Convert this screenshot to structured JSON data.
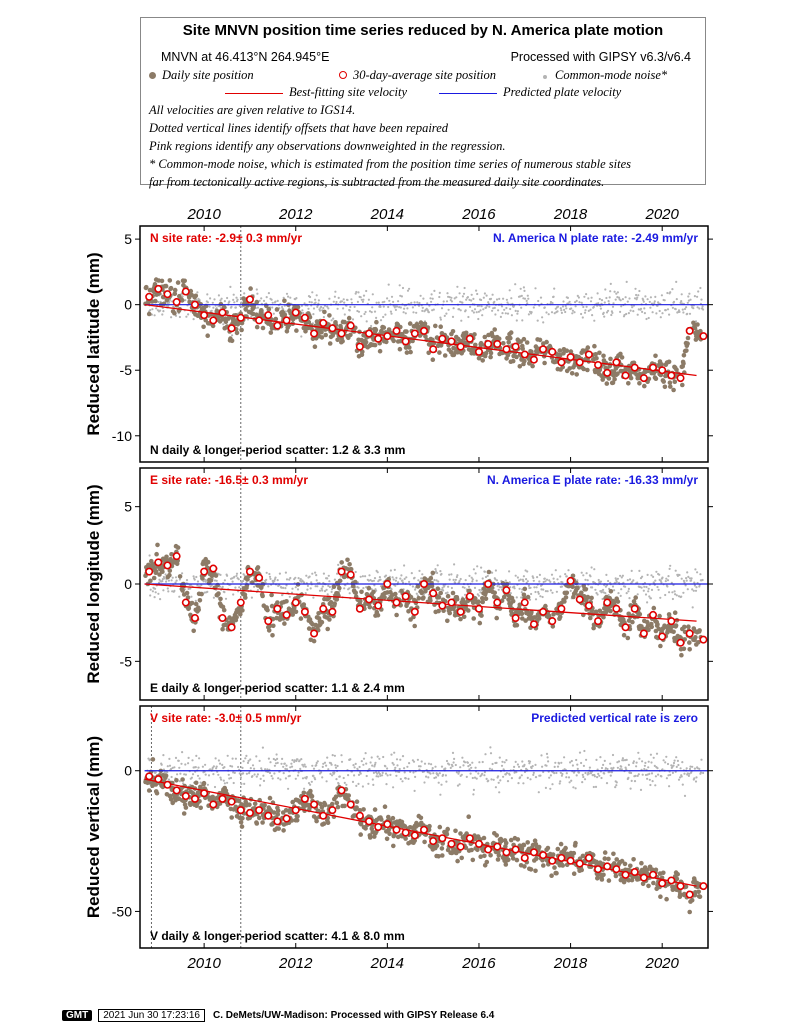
{
  "header": {
    "title": "Site MNVN position time series reduced by N. America plate motion",
    "site_info": "MNVN at 46.413°N 264.945°E",
    "processed": "Processed with GIPSY v6.3/v6.4",
    "legend": {
      "daily": "Daily site position",
      "avg": "30-day-average site position",
      "cmn": "Common-mode noise*",
      "best_fit": "Best-fitting site velocity",
      "predicted": "Predicted plate velocity"
    },
    "notes": [
      "All velocities are given relative to IGS14.",
      "Dotted vertical lines identify offsets that have been repaired",
      "Pink regions identify any observations downweighted in the regression.",
      "* Common-mode noise, which is estimated from the position time series of numerous stable sites",
      "far from tectonically active regions, is subtracted from the measured daily site coordinates."
    ]
  },
  "colors": {
    "daily": "#8c7b67",
    "cmn": "#b4b4b4",
    "fit": "#e00000",
    "plate": "#1a1ae0",
    "avg_ring": "#e00000"
  },
  "chart_data": [
    {
      "type": "scatter",
      "component": "north",
      "ylabel": "Reduced latitude (mm)",
      "ylim": [
        -12,
        6
      ],
      "yticks": [
        5,
        0,
        -5,
        -10
      ],
      "xlim": [
        2008.6,
        2021.0
      ],
      "xticks": [
        2010,
        2012,
        2014,
        2016,
        2018,
        2020
      ],
      "site_rate_label": "N site rate:  -2.9± 0.3 mm/yr",
      "plate_rate_label": "N. America N plate rate: -2.49 mm/yr",
      "scatter_label": "N daily & longer-period scatter:   1.2 &   3.3 mm",
      "fit_line": {
        "x": [
          2008.7,
          2020.75
        ],
        "y": [
          0.0,
          -5.4
        ]
      },
      "plate_line": {
        "x": [
          2008.7,
          2021.0
        ],
        "y": [
          0.0,
          0.0
        ]
      },
      "offset_lines_x": [
        2010.8
      ],
      "avg_series": {
        "x": [
          2008.8,
          2009.0,
          2009.2,
          2009.4,
          2009.6,
          2009.8,
          2010.0,
          2010.2,
          2010.4,
          2010.6,
          2010.8,
          2011.0,
          2011.2,
          2011.4,
          2011.6,
          2011.8,
          2012.0,
          2012.2,
          2012.4,
          2012.6,
          2012.8,
          2013.0,
          2013.2,
          2013.4,
          2013.6,
          2013.8,
          2014.0,
          2014.2,
          2014.4,
          2014.6,
          2014.8,
          2015.0,
          2015.2,
          2015.4,
          2015.6,
          2015.8,
          2016.0,
          2016.2,
          2016.4,
          2016.6,
          2016.8,
          2017.0,
          2017.2,
          2017.4,
          2017.6,
          2017.8,
          2018.0,
          2018.2,
          2018.4,
          2018.6,
          2018.8,
          2019.0,
          2019.2,
          2019.4,
          2019.6,
          2019.8,
          2020.0,
          2020.2,
          2020.4,
          2020.6,
          2020.9
        ],
        "y": [
          0.6,
          1.2,
          0.8,
          0.2,
          1.0,
          0.0,
          -0.8,
          -1.2,
          -0.6,
          -1.8,
          -1.0,
          0.4,
          -1.2,
          -0.8,
          -1.6,
          -1.2,
          -0.6,
          -1.0,
          -2.2,
          -1.4,
          -1.8,
          -2.2,
          -1.6,
          -3.2,
          -2.2,
          -2.6,
          -2.4,
          -2.0,
          -2.8,
          -2.2,
          -2.0,
          -3.4,
          -2.6,
          -2.8,
          -3.2,
          -2.6,
          -3.6,
          -3.0,
          -3.0,
          -3.4,
          -3.2,
          -3.8,
          -4.2,
          -3.4,
          -3.6,
          -4.4,
          -4.0,
          -4.4,
          -3.8,
          -4.6,
          -5.2,
          -4.4,
          -5.4,
          -4.8,
          -5.6,
          -4.8,
          -5.0,
          -5.4,
          -5.6,
          -2.0,
          -2.4
        ]
      }
    },
    {
      "type": "scatter",
      "component": "east",
      "ylabel": "Reduced longitude (mm)",
      "ylim": [
        -7.5,
        7.5
      ],
      "yticks": [
        5,
        0,
        -5
      ],
      "xlim": [
        2008.6,
        2021.0
      ],
      "xticks": [
        2010,
        2012,
        2014,
        2016,
        2018,
        2020
      ],
      "site_rate_label": "E site rate: -16.5± 0.3 mm/yr",
      "plate_rate_label": "N. America E plate rate: -16.33 mm/yr",
      "scatter_label": "E daily & longer-period scatter:   1.1 &   2.4 mm",
      "fit_line": {
        "x": [
          2008.7,
          2020.75
        ],
        "y": [
          0.0,
          -2.4
        ]
      },
      "plate_line": {
        "x": [
          2008.7,
          2021.0
        ],
        "y": [
          0.0,
          0.0
        ]
      },
      "offset_lines_x": [
        2010.8
      ],
      "avg_series": {
        "x": [
          2008.8,
          2009.0,
          2009.2,
          2009.4,
          2009.6,
          2009.8,
          2010.0,
          2010.2,
          2010.4,
          2010.6,
          2010.8,
          2011.0,
          2011.2,
          2011.4,
          2011.6,
          2011.8,
          2012.0,
          2012.2,
          2012.4,
          2012.6,
          2012.8,
          2013.0,
          2013.2,
          2013.4,
          2013.6,
          2013.8,
          2014.0,
          2014.2,
          2014.4,
          2014.6,
          2014.8,
          2015.0,
          2015.2,
          2015.4,
          2015.6,
          2015.8,
          2016.0,
          2016.2,
          2016.4,
          2016.6,
          2016.8,
          2017.0,
          2017.2,
          2017.4,
          2017.6,
          2017.8,
          2018.0,
          2018.2,
          2018.4,
          2018.6,
          2018.8,
          2019.0,
          2019.2,
          2019.4,
          2019.6,
          2019.8,
          2020.0,
          2020.2,
          2020.4,
          2020.6,
          2020.9
        ],
        "y": [
          0.8,
          1.4,
          1.2,
          1.8,
          -1.2,
          -2.2,
          0.8,
          1.0,
          -2.2,
          -2.8,
          -1.2,
          0.8,
          0.4,
          -2.4,
          -1.6,
          -2.0,
          -1.2,
          -1.8,
          -3.2,
          -1.6,
          -1.8,
          0.8,
          0.6,
          -1.6,
          -1.0,
          -1.4,
          0.0,
          -1.2,
          -0.8,
          -1.8,
          0.0,
          -0.6,
          -1.4,
          -1.2,
          -1.8,
          -0.8,
          -1.6,
          0.0,
          -1.2,
          -0.4,
          -2.2,
          -1.2,
          -2.6,
          -1.8,
          -2.4,
          -1.6,
          0.2,
          -1.0,
          -1.4,
          -2.4,
          -1.2,
          -1.6,
          -2.8,
          -1.6,
          -3.2,
          -2.0,
          -3.4,
          -2.4,
          -3.8,
          -3.2,
          -3.6
        ]
      }
    },
    {
      "type": "scatter",
      "component": "vertical",
      "ylabel": "Reduced vertical (mm)",
      "ylim": [
        -63,
        23
      ],
      "yticks": [
        0,
        -50
      ],
      "xlim": [
        2008.6,
        2021.0
      ],
      "xticks": [
        2010,
        2012,
        2014,
        2016,
        2018,
        2020
      ],
      "site_rate_label": "V site rate:  -3.0± 0.5 mm/yr",
      "plate_rate_label": "Predicted vertical rate is zero",
      "scatter_label": "V daily & longer-period scatter:   4.1 &   8.0 mm",
      "fit_line": {
        "x": [
          2008.7,
          2020.75
        ],
        "y": [
          -3.0,
          -41.0
        ]
      },
      "plate_line": {
        "x": [
          2008.7,
          2021.0
        ],
        "y": [
          0.0,
          0.0
        ]
      },
      "offset_lines_x": [
        2008.85,
        2010.8
      ],
      "avg_series": {
        "x": [
          2008.8,
          2009.0,
          2009.2,
          2009.4,
          2009.6,
          2009.8,
          2010.0,
          2010.2,
          2010.4,
          2010.6,
          2010.8,
          2011.0,
          2011.2,
          2011.4,
          2011.6,
          2011.8,
          2012.0,
          2012.2,
          2012.4,
          2012.6,
          2012.8,
          2013.0,
          2013.2,
          2013.4,
          2013.6,
          2013.8,
          2014.0,
          2014.2,
          2014.4,
          2014.6,
          2014.8,
          2015.0,
          2015.2,
          2015.4,
          2015.6,
          2015.8,
          2016.0,
          2016.2,
          2016.4,
          2016.6,
          2016.8,
          2017.0,
          2017.2,
          2017.4,
          2017.6,
          2017.8,
          2018.0,
          2018.2,
          2018.4,
          2018.6,
          2018.8,
          2019.0,
          2019.2,
          2019.4,
          2019.6,
          2019.8,
          2020.0,
          2020.2,
          2020.4,
          2020.6,
          2020.9
        ],
        "y": [
          -2,
          -3,
          -5,
          -7,
          -9,
          -10,
          -8,
          -12,
          -10,
          -11,
          -14,
          -15,
          -14,
          -16,
          -18,
          -17,
          -14,
          -10,
          -12,
          -16,
          -14,
          -7,
          -12,
          -16,
          -18,
          -20,
          -19,
          -21,
          -22,
          -23,
          -21,
          -25,
          -24,
          -26,
          -27,
          -24,
          -26,
          -28,
          -27,
          -29,
          -28,
          -31,
          -29,
          -30,
          -32,
          -31,
          -32,
          -33,
          -31,
          -35,
          -34,
          -35,
          -37,
          -36,
          -38,
          -37,
          -40,
          -39,
          -41,
          -44,
          -41
        ]
      }
    }
  ],
  "axis": {
    "years": [
      "2010",
      "2012",
      "2014",
      "2016",
      "2018",
      "2020"
    ]
  },
  "footer": {
    "logo": "GMT",
    "date": "2021 Jun 30 17:23:16",
    "credit": "C. DeMets/UW-Madison: Processed with GIPSY Release 6.4"
  }
}
